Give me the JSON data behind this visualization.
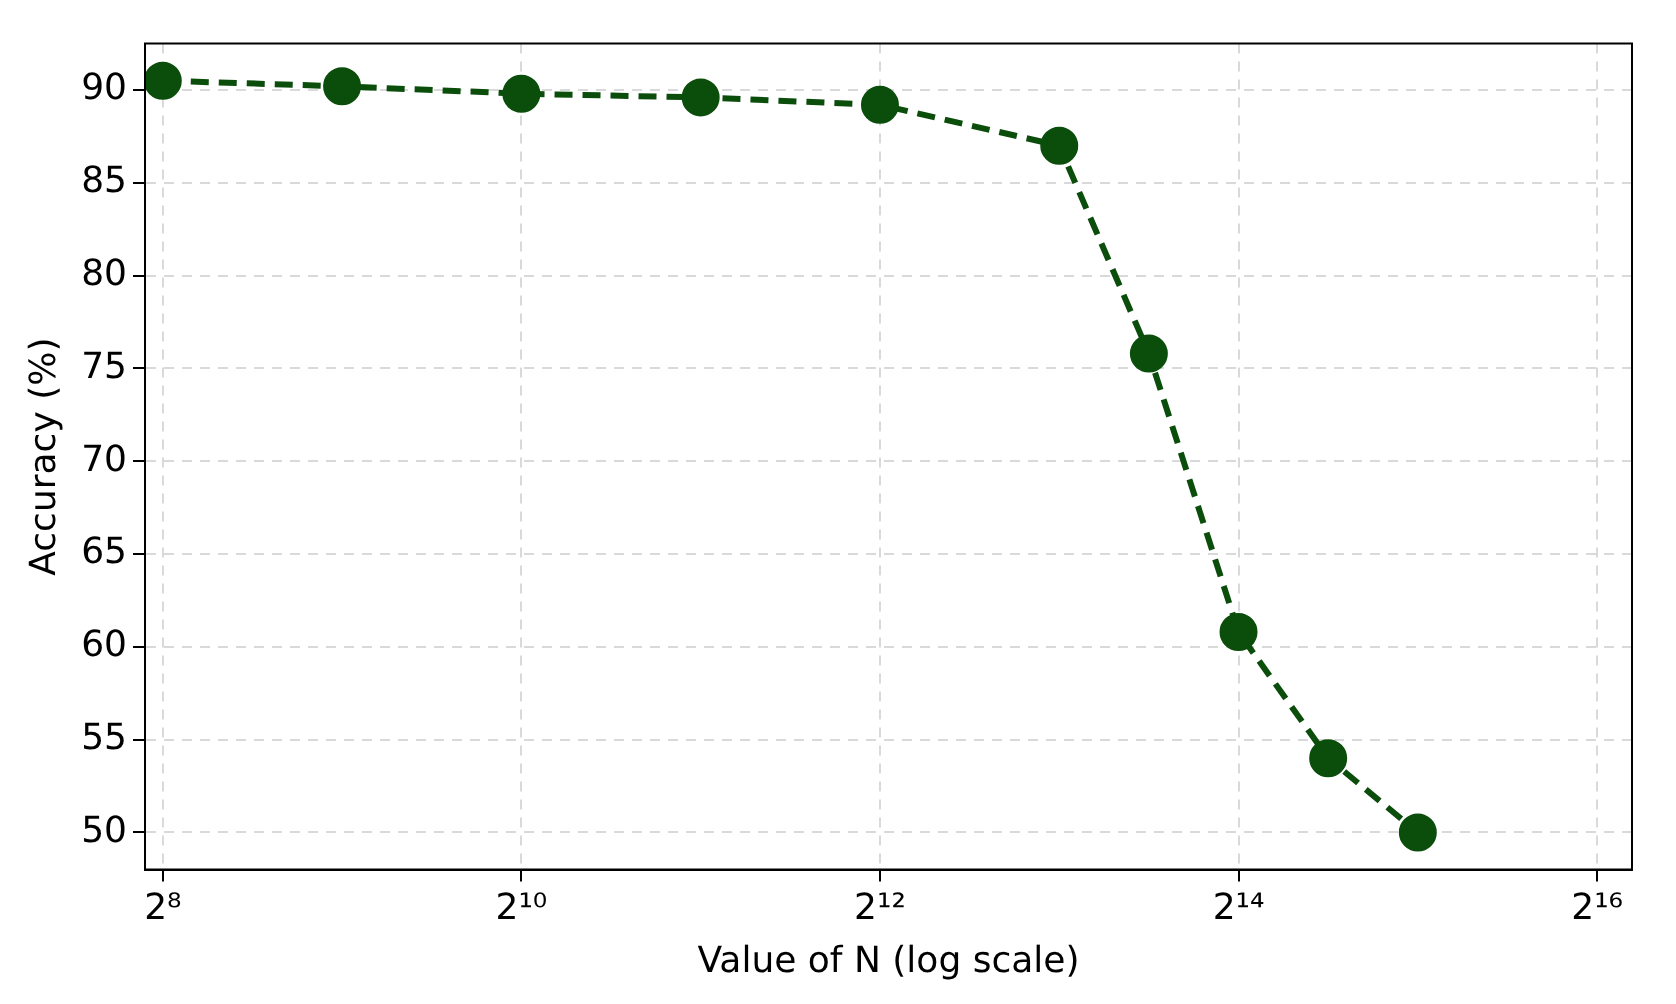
{
  "chart_data": {
    "type": "line",
    "xlabel": "Value of N (log scale)",
    "ylabel": "Accuracy (%)",
    "x": [
      256,
      512,
      1024,
      2048,
      4096,
      8192,
      11585,
      16384,
      23170,
      32768
    ],
    "series": [
      {
        "color": "#0b4d0b",
        "values": [
          90.5,
          90.2,
          89.8,
          89.6,
          89.2,
          87.0,
          75.8,
          60.8,
          54.0,
          50.0
        ]
      }
    ],
    "log": "x",
    "xlim": [
      239,
      75000
    ],
    "xticks": [
      {
        "value": 256,
        "label": "2⁸"
      },
      {
        "value": 1024,
        "label": "2¹⁰"
      },
      {
        "value": 4096,
        "label": "2¹²"
      },
      {
        "value": 16384,
        "label": "2¹⁴"
      },
      {
        "value": 65536,
        "label": "2¹⁶"
      }
    ],
    "ylim": [
      48,
      92.5
    ],
    "yticks": [
      50,
      55,
      60,
      65,
      70,
      75,
      80,
      85,
      90
    ],
    "grid": true,
    "legend": false,
    "marker": "circle",
    "line_style": "dashed"
  }
}
